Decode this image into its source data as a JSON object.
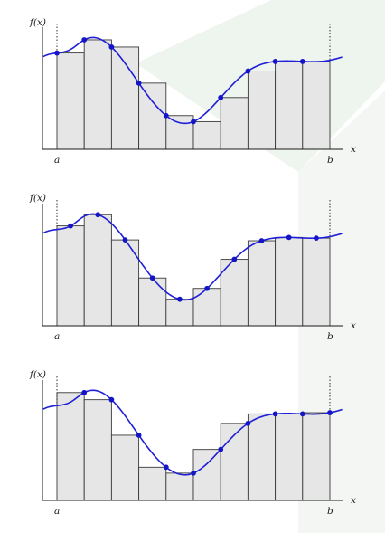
{
  "colors": {
    "bar_fill": "#e6e6e6",
    "bar_stroke": "#3a3a3a",
    "curve": "#1f1fd6",
    "point": "#1515c8",
    "axis": "#1a1a1a",
    "watermark": "#eef4ee"
  },
  "panels": [
    {
      "id": "left",
      "ylabel": "f(x)",
      "xlabel": "x",
      "a_label": "a",
      "b_label": "b",
      "sample_rule": "left"
    },
    {
      "id": "midpoint",
      "ylabel": "f(x)",
      "xlabel": "x",
      "a_label": "a",
      "b_label": "b",
      "sample_rule": "midpoint"
    },
    {
      "id": "right",
      "ylabel": "f(x)",
      "xlabel": "x",
      "a_label": "a",
      "b_label": "b",
      "sample_rule": "right"
    }
  ],
  "chart_data": {
    "type": "bar",
    "n_subintervals": 10,
    "curve_knots": {
      "x": [
        0,
        0.5,
        1,
        2,
        3,
        4,
        5,
        6,
        7,
        8,
        9,
        10,
        10.5
      ],
      "y": [
        0.8,
        0.83,
        0.91,
        0.85,
        0.55,
        0.28,
        0.23,
        0.43,
        0.65,
        0.73,
        0.73,
        0.74,
        0.77
      ]
    }
  }
}
